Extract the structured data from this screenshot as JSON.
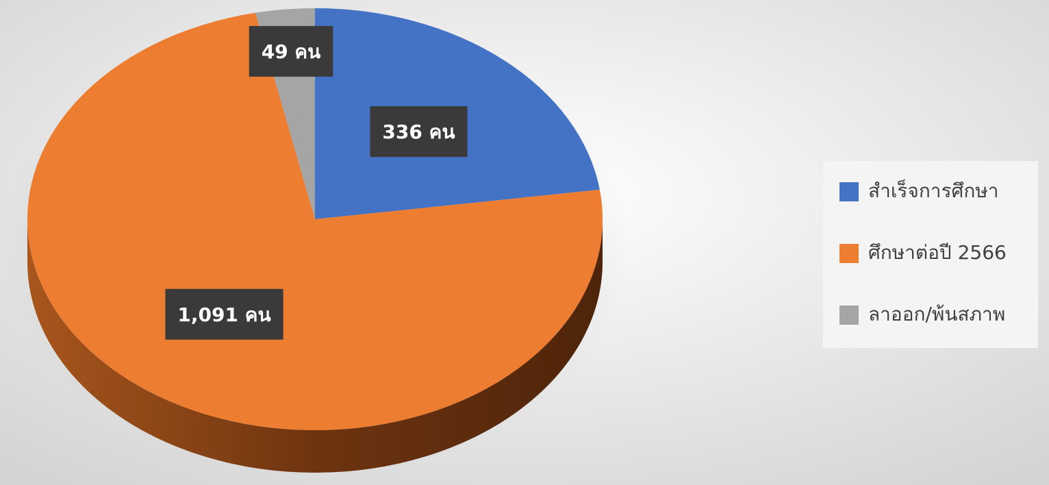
{
  "chart_data": {
    "type": "pie",
    "categories": [
      "สำเร็จการศึกษา",
      "ศึกษาต่อปี 2566",
      "ลาออก/พ้นสภาพ"
    ],
    "values": [
      336,
      1091,
      49
    ],
    "value_labels": [
      "336 คน",
      "1,091 คน",
      "49 คน"
    ],
    "colors": [
      "#4472c4",
      "#ed7d31",
      "#a5a5a5"
    ],
    "legend": "right"
  }
}
